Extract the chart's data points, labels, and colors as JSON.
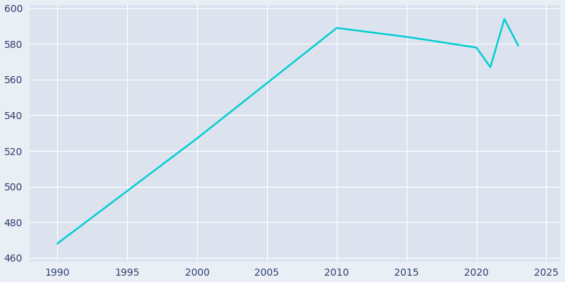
{
  "years": [
    1990,
    2000,
    2010,
    2015,
    2020,
    2021,
    2022,
    2023
  ],
  "population": [
    468,
    527,
    589,
    584,
    578,
    567,
    594,
    579
  ],
  "line_color": "#00CED1",
  "fig_bg_color": "#EAEEF5",
  "plot_bg_color": "#DCE3EE",
  "grid_color": "#FFFFFF",
  "tick_color": "#2d3e6e",
  "xlim": [
    1988,
    2026
  ],
  "ylim": [
    458,
    602
  ],
  "xticks": [
    1990,
    1995,
    2000,
    2005,
    2010,
    2015,
    2020,
    2025
  ],
  "yticks": [
    460,
    480,
    500,
    520,
    540,
    560,
    580,
    600
  ],
  "linewidth": 1.8,
  "figsize": [
    8.0,
    4.0
  ],
  "dpi": 100
}
